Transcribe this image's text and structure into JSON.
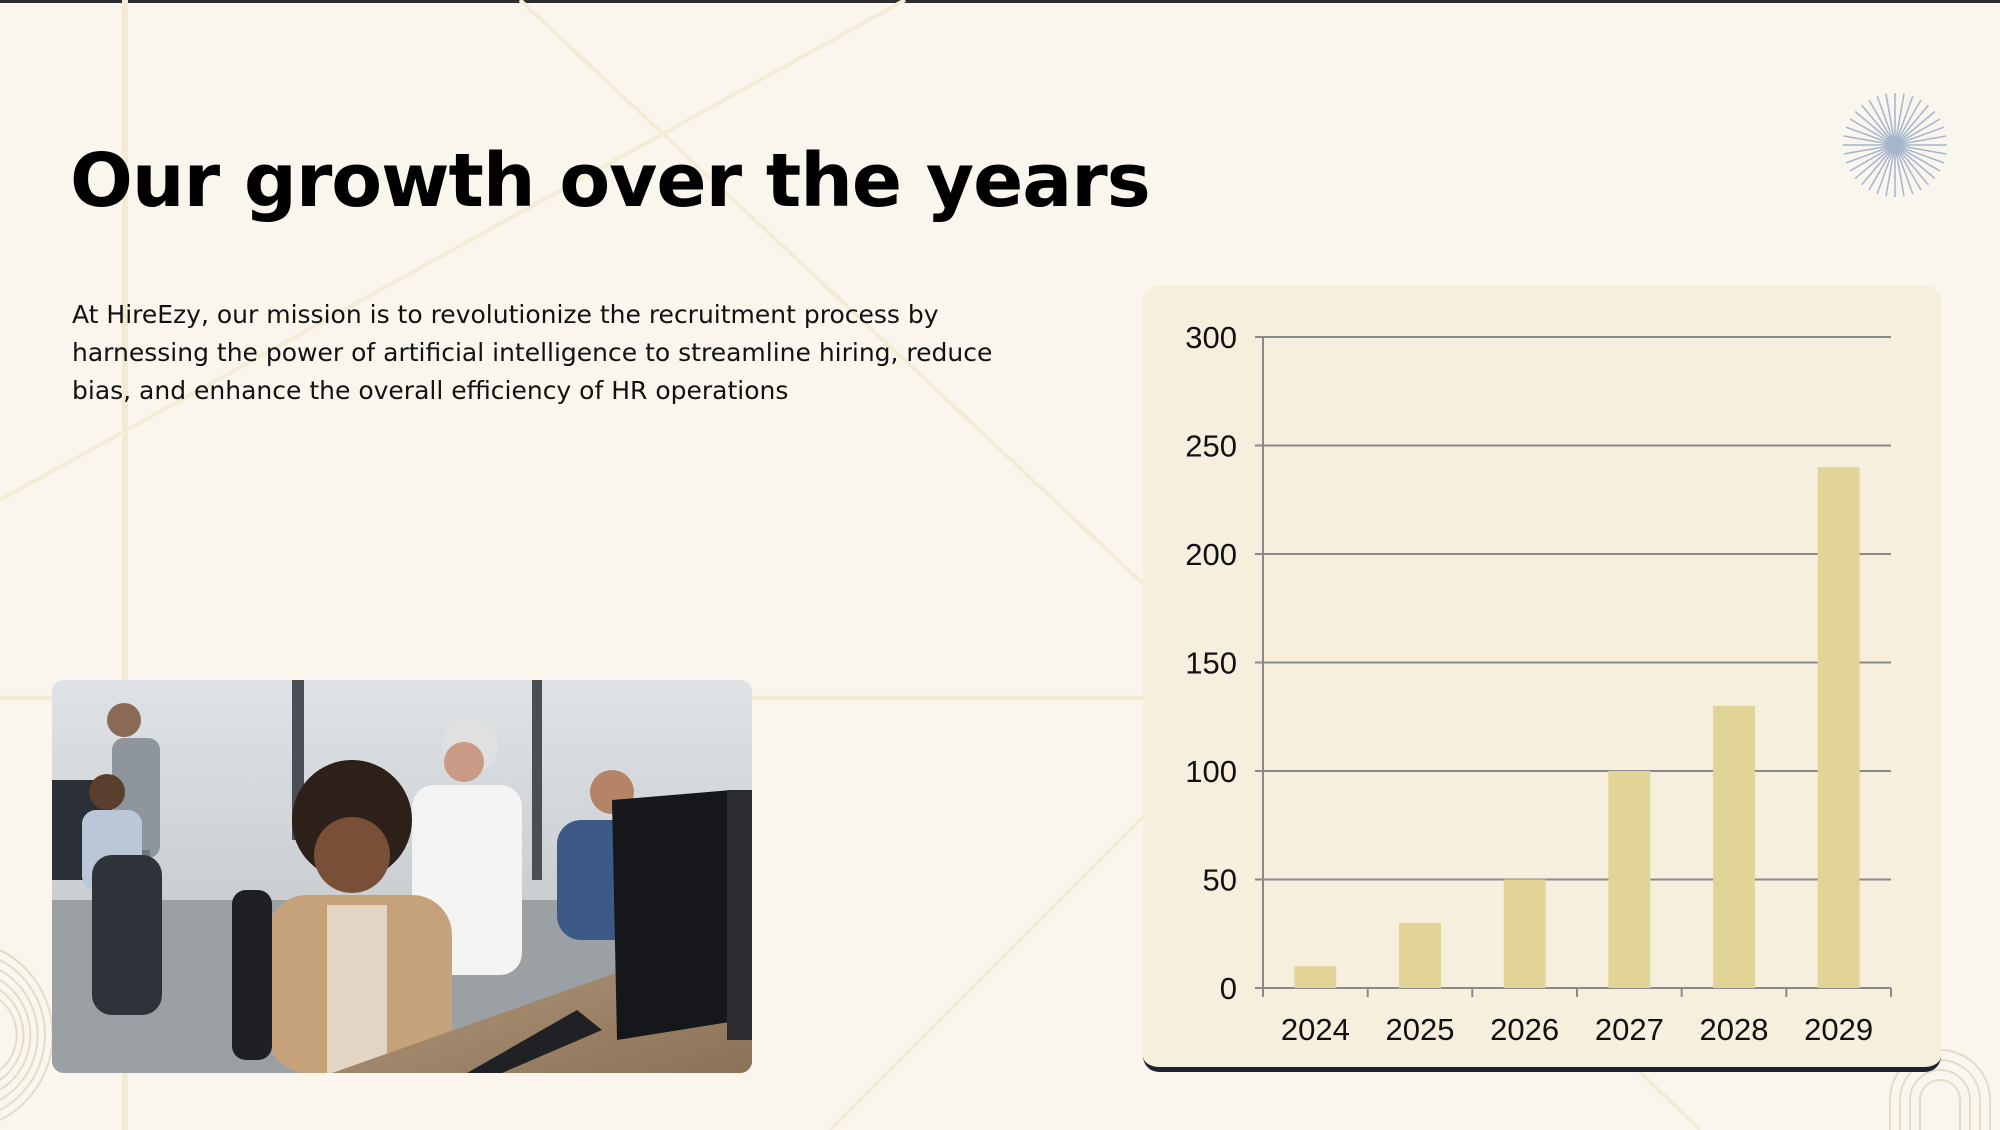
{
  "slide": {
    "title": "Our growth over the years",
    "body": "At HireEzy, our mission is to revolutionize the recruitment process by harnessing the power of artificial intelligence to streamline hiring, reduce bias, and enhance the overall efficiency of HR operations"
  },
  "photo": {
    "icon": "office-team-photo"
  },
  "colors": {
    "background": "#faf6ee",
    "card": "#f6efde",
    "bar": "#e2d497",
    "grid": "#8a8a8a",
    "accent_dark": "#1b2335",
    "burst": "#a6b4cc"
  },
  "chart_data": {
    "type": "bar",
    "categories": [
      "2024",
      "2025",
      "2026",
      "2027",
      "2028",
      "2029"
    ],
    "values": [
      10,
      30,
      50,
      100,
      130,
      240
    ],
    "title": "",
    "xlabel": "",
    "ylabel": "",
    "ylim": [
      0,
      300
    ],
    "yticks": [
      0,
      50,
      100,
      150,
      200,
      250,
      300
    ],
    "grid": true,
    "legend": "none"
  }
}
